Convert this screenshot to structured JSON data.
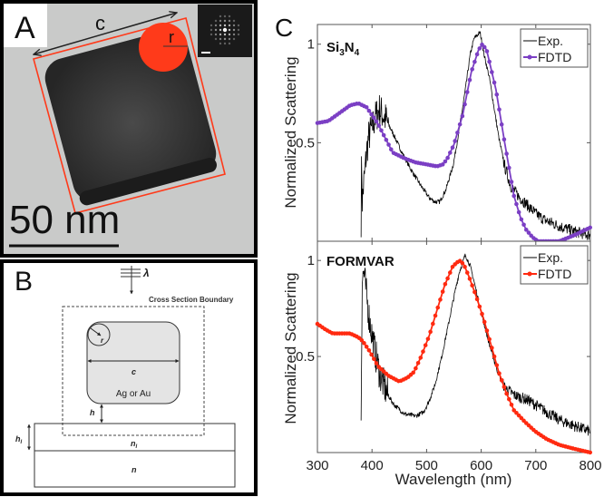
{
  "panel_a": {
    "label": "A",
    "dimension_c": "c",
    "dimension_r": "r",
    "scale_bar_text": "50 nm",
    "overlay_color": "#ff3a1a"
  },
  "panel_b": {
    "label": "B",
    "wavelength_symbol": "λ",
    "boundary_label": "Cross Section Boundary",
    "radius_label": "r",
    "edge_label": "c",
    "material_label": "Ag or Au",
    "gap_label": "h",
    "layer_thickness_label": "h",
    "layer_thickness_sub": "l",
    "layer_index_label": "n",
    "layer_index_sub": "l",
    "substrate_index_label": "n"
  },
  "panel_c": {
    "label": "C"
  },
  "chart_data": [
    {
      "type": "line",
      "title": "Si3N4",
      "title_main": "Si",
      "title_sub1": "3",
      "title_mid": "N",
      "title_sub2": "4",
      "xlabel": "",
      "ylabel": "Normalized Scattering",
      "xlim": [
        300,
        800
      ],
      "ylim": [
        0,
        1.1
      ],
      "xticks": [
        300,
        400,
        500,
        600,
        700,
        800
      ],
      "yticks": [
        "0.5",
        "1"
      ],
      "legend_position": "top-right",
      "series": [
        {
          "name": "Exp.",
          "color": "#000000",
          "noisy": true,
          "x": [
            380,
            381,
            382,
            390,
            394,
            405,
            413,
            425,
            438,
            455,
            472,
            490,
            505,
            515,
            524,
            535,
            549,
            560,
            571,
            580,
            587,
            598,
            605,
            615,
            632,
            643,
            654,
            668,
            682,
            700,
            715,
            740,
            770,
            800
          ],
          "y": [
            0.11,
            0.46,
            0.2,
            0.45,
            0.53,
            0.62,
            0.67,
            0.62,
            0.55,
            0.45,
            0.36,
            0.28,
            0.22,
            0.2,
            0.2,
            0.26,
            0.39,
            0.57,
            0.77,
            0.95,
            1.03,
            1.06,
            0.95,
            0.83,
            0.53,
            0.38,
            0.28,
            0.23,
            0.19,
            0.14,
            0.11,
            0.08,
            0.05,
            0.03
          ]
        },
        {
          "name": "FDTD",
          "color": "#7b3fc4",
          "noisy": false,
          "x": [
            300,
            320,
            340,
            360,
            375,
            390,
            410,
            438,
            460,
            480,
            500,
            519,
            530,
            538,
            550,
            566,
            582,
            595,
            602,
            610,
            627,
            643,
            660,
            672,
            682,
            694,
            704,
            720,
            743,
            770,
            800
          ],
          "y": [
            0.6,
            0.61,
            0.65,
            0.69,
            0.7,
            0.68,
            0.6,
            0.45,
            0.42,
            0.4,
            0.39,
            0.38,
            0.39,
            0.42,
            0.49,
            0.64,
            0.86,
            0.97,
            1.0,
            0.97,
            0.77,
            0.5,
            0.23,
            0.12,
            0.06,
            0.02,
            0.0,
            0.0,
            0.0,
            0.03,
            0.07
          ]
        }
      ]
    },
    {
      "type": "line",
      "title": "FORMVAR",
      "xlabel": "Wavelength (nm)",
      "ylabel": "Normalized Scattering",
      "xlim": [
        300,
        800
      ],
      "ylim": [
        0,
        1.1
      ],
      "xticks": [
        300,
        400,
        500,
        600,
        700,
        800
      ],
      "yticks": [
        "0.5",
        "1"
      ],
      "legend_position": "top-right",
      "series": [
        {
          "name": "Exp.",
          "color": "#000000",
          "noisy": true,
          "x": [
            380,
            382,
            385,
            389,
            395,
            405,
            415,
            427,
            440,
            460,
            480,
            494,
            505,
            516,
            527,
            538,
            550,
            560,
            571,
            580,
            587,
            600,
            615,
            630,
            643,
            660,
            688,
            715,
            743,
            770,
            800
          ],
          "y": [
            0.2,
            0.9,
            0.94,
            0.84,
            0.7,
            0.53,
            0.4,
            0.31,
            0.25,
            0.2,
            0.19,
            0.21,
            0.27,
            0.36,
            0.49,
            0.64,
            0.81,
            0.94,
            1.03,
            0.97,
            0.89,
            0.73,
            0.56,
            0.42,
            0.34,
            0.3,
            0.27,
            0.22,
            0.17,
            0.14,
            0.11
          ]
        },
        {
          "name": "FDTD",
          "color": "#ff2a10",
          "noisy": false,
          "x": [
            300,
            315,
            328,
            345,
            360,
            375,
            383,
            395,
            411,
            430,
            450,
            465,
            477,
            490,
            505,
            520,
            533,
            548,
            560,
            568,
            577,
            590,
            604,
            618,
            632,
            646,
            660,
            680,
            699,
            720,
            743,
            770,
            800
          ],
          "y": [
            0.67,
            0.64,
            0.62,
            0.62,
            0.62,
            0.6,
            0.58,
            0.53,
            0.45,
            0.4,
            0.37,
            0.39,
            0.42,
            0.5,
            0.61,
            0.75,
            0.87,
            0.97,
            1.0,
            0.98,
            0.92,
            0.82,
            0.7,
            0.56,
            0.42,
            0.31,
            0.22,
            0.16,
            0.11,
            0.07,
            0.04,
            0.02,
            0.0
          ]
        }
      ]
    }
  ]
}
